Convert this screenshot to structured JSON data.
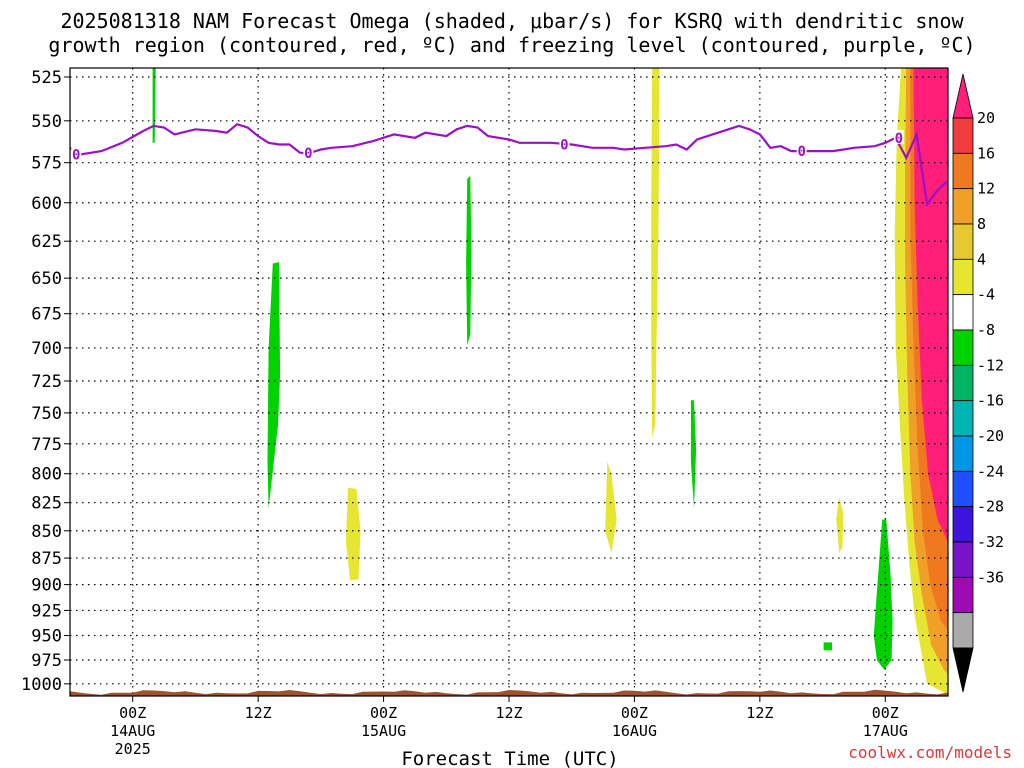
{
  "chart_data": {
    "type": "heatmap",
    "title": "2025081318 NAM Forecast Omega (shaded, μbar/s) for KSRQ with dendritic snow",
    "subtitle": "growth region (contoured, red, ºC) and freezing level (contoured, purple, ºC)",
    "xlabel": "Forecast Time (UTC)",
    "credit": "coolwx.com/models",
    "x_range_hours": [
      0,
      84
    ],
    "y_range_hpa": [
      1013,
      520
    ],
    "y_ticks": [
      "525",
      "550",
      "575",
      "600",
      "625",
      "650",
      "675",
      "700",
      "725",
      "750",
      "775",
      "800",
      "825",
      "850",
      "875",
      "900",
      "925",
      "950",
      "975",
      "1000"
    ],
    "x_ticks": [
      {
        "hour": 6,
        "label": "00Z",
        "date": "14AUG",
        "year": "2025"
      },
      {
        "hour": 18,
        "label": "12Z",
        "date": "",
        "year": ""
      },
      {
        "hour": 30,
        "label": "00Z",
        "date": "15AUG",
        "year": ""
      },
      {
        "hour": 42,
        "label": "12Z",
        "date": "",
        "year": ""
      },
      {
        "hour": 54,
        "label": "00Z",
        "date": "16AUG",
        "year": ""
      },
      {
        "hour": 66,
        "label": "12Z",
        "date": "",
        "year": ""
      },
      {
        "hour": 78,
        "label": "00Z",
        "date": "17AUG",
        "year": ""
      }
    ],
    "grid": true,
    "colorbar": {
      "labels": [
        "20",
        "16",
        "12",
        "8",
        "4",
        "-4",
        "-8",
        "-12",
        "-16",
        "-20",
        "-24",
        "-28",
        "-32",
        "-36"
      ],
      "colors": [
        "#ff1e78",
        "#f03c3c",
        "#f0781e",
        "#f0a028",
        "#e6c832",
        "#e6e632",
        "#ffffff",
        "#00d200",
        "#00b464",
        "#00b4b4",
        "#0096e6",
        "#1e50ff",
        "#3c14dc",
        "#7814c8",
        "#a00ab4",
        "#aaaaaa",
        "#000000"
      ]
    },
    "freezing_level": {
      "color": "#9b10c8",
      "label": "0",
      "points": [
        [
          0,
          566
        ],
        [
          1,
          570
        ],
        [
          3,
          568
        ],
        [
          5,
          563
        ],
        [
          7,
          556
        ],
        [
          8,
          553
        ],
        [
          9,
          554
        ],
        [
          10,
          558
        ],
        [
          12,
          555
        ],
        [
          14,
          556
        ],
        [
          15,
          557
        ],
        [
          16,
          552
        ],
        [
          17,
          554
        ],
        [
          18,
          559
        ],
        [
          19,
          563
        ],
        [
          20,
          564
        ],
        [
          21,
          564
        ],
        [
          22,
          569
        ],
        [
          23,
          569
        ],
        [
          24,
          567
        ],
        [
          25,
          566
        ],
        [
          27,
          565
        ],
        [
          29,
          562
        ],
        [
          31,
          558
        ],
        [
          33,
          560
        ],
        [
          34,
          557
        ],
        [
          36,
          559
        ],
        [
          37,
          555
        ],
        [
          38,
          553
        ],
        [
          39,
          554
        ],
        [
          40,
          559
        ],
        [
          42,
          561
        ],
        [
          43,
          563
        ],
        [
          46,
          563
        ],
        [
          48,
          564
        ],
        [
          50,
          566
        ],
        [
          52,
          566
        ],
        [
          53,
          567
        ],
        [
          55,
          566
        ],
        [
          57,
          565
        ],
        [
          58,
          564
        ],
        [
          59,
          567
        ],
        [
          60,
          561
        ],
        [
          62,
          557
        ],
        [
          64,
          553
        ],
        [
          65,
          555
        ],
        [
          66,
          558
        ],
        [
          67,
          566
        ],
        [
          68,
          565
        ],
        [
          69,
          568
        ],
        [
          71,
          568
        ],
        [
          73,
          568
        ],
        [
          74,
          567
        ],
        [
          75,
          566
        ],
        [
          77,
          565
        ],
        [
          78,
          563
        ],
        [
          79,
          560
        ],
        [
          80,
          572
        ],
        [
          81,
          558
        ],
        [
          82,
          601
        ],
        [
          83,
          592
        ],
        [
          84,
          586
        ]
      ]
    },
    "terrain_color": "#a0522d",
    "omega_regions": [
      {
        "value": -6,
        "color": "#00d200",
        "polygon": [
          [
            7.9,
            520
          ],
          [
            8.2,
            520
          ],
          [
            8.1,
            563
          ],
          [
            7.9,
            563
          ]
        ]
      },
      {
        "value": -6,
        "color": "#00d200",
        "polygon": [
          [
            19.4,
            640
          ],
          [
            20.0,
            639
          ],
          [
            20.1,
            720
          ],
          [
            19.9,
            760
          ],
          [
            19.5,
            790
          ],
          [
            19.0,
            830
          ],
          [
            18.9,
            790
          ],
          [
            19.0,
            700
          ]
        ]
      },
      {
        "value": -6,
        "color": "#00d200",
        "polygon": [
          [
            38.0,
            585
          ],
          [
            38.3,
            583
          ],
          [
            38.4,
            630
          ],
          [
            38.3,
            690
          ],
          [
            38.0,
            698
          ],
          [
            37.9,
            640
          ]
        ]
      },
      {
        "value": -6,
        "color": "#00d200",
        "polygon": [
          [
            59.4,
            740
          ],
          [
            59.7,
            740
          ],
          [
            59.9,
            780
          ],
          [
            59.7,
            830
          ],
          [
            59.4,
            790
          ]
        ]
      },
      {
        "value": -6,
        "color": "#00d200",
        "polygon": [
          [
            72.1,
            957
          ],
          [
            72.9,
            957
          ],
          [
            72.9,
            965
          ],
          [
            72.1,
            965
          ]
        ]
      },
      {
        "value": -6,
        "color": "#00d200",
        "polygon": [
          [
            77.7,
            840
          ],
          [
            78.1,
            840
          ],
          [
            78.5,
            890
          ],
          [
            78.7,
            935
          ],
          [
            78.6,
            975
          ],
          [
            77.9,
            985
          ],
          [
            77.2,
            975
          ],
          [
            76.9,
            950
          ],
          [
            77.1,
            920
          ],
          [
            77.4,
            880
          ]
        ]
      },
      {
        "value": 6,
        "color": "#e6e632",
        "polygon": [
          [
            26.6,
            812
          ],
          [
            27.4,
            813
          ],
          [
            27.8,
            850
          ],
          [
            27.6,
            895
          ],
          [
            26.8,
            896
          ],
          [
            26.4,
            860
          ]
        ]
      },
      {
        "value": 6,
        "color": "#e6e632",
        "polygon": [
          [
            51.4,
            790
          ],
          [
            51.8,
            800
          ],
          [
            52.3,
            840
          ],
          [
            51.8,
            870
          ],
          [
            51.2,
            850
          ]
        ]
      },
      {
        "value": 6,
        "color": "#e6e632",
        "polygon": [
          [
            55.7,
            520
          ],
          [
            56.4,
            520
          ],
          [
            56.3,
            620
          ],
          [
            56.1,
            700
          ],
          [
            56.0,
            760
          ],
          [
            55.7,
            770
          ],
          [
            55.6,
            690
          ],
          [
            55.6,
            600
          ]
        ]
      },
      {
        "value": 6,
        "color": "#e6e632",
        "polygon": [
          [
            73.6,
            820
          ],
          [
            74.0,
            835
          ],
          [
            73.9,
            865
          ],
          [
            73.6,
            870
          ],
          [
            73.3,
            840
          ]
        ]
      },
      {
        "value": 6,
        "color": "#e6e632",
        "polygon": [
          [
            79.5,
            520
          ],
          [
            84,
            520
          ],
          [
            84,
            1012
          ],
          [
            83.4,
            1008
          ],
          [
            82,
            1000
          ],
          [
            81.5,
            970
          ],
          [
            80.8,
            930
          ],
          [
            80.3,
            880
          ],
          [
            79.8,
            820
          ],
          [
            79.4,
            760
          ],
          [
            79.0,
            700
          ],
          [
            78.9,
            620
          ],
          [
            79.1,
            560
          ]
        ]
      },
      {
        "value": 10,
        "color": "#f0a028",
        "polygon": [
          [
            80.0,
            520
          ],
          [
            84,
            520
          ],
          [
            84,
            990
          ],
          [
            83.6,
            985
          ],
          [
            82.4,
            960
          ],
          [
            81.5,
            910
          ],
          [
            80.8,
            860
          ],
          [
            80.4,
            800
          ],
          [
            80.1,
            720
          ],
          [
            79.9,
            640
          ],
          [
            79.9,
            580
          ]
        ]
      },
      {
        "value": 14,
        "color": "#f0781e",
        "polygon": [
          [
            80.4,
            520
          ],
          [
            84,
            520
          ],
          [
            84,
            945
          ],
          [
            83.3,
            935
          ],
          [
            82.3,
            900
          ],
          [
            81.6,
            850
          ],
          [
            81.1,
            780
          ],
          [
            80.7,
            700
          ],
          [
            80.4,
            620
          ]
        ]
      },
      {
        "value": 22,
        "color": "#ff1e78",
        "polygon": [
          [
            80.7,
            520
          ],
          [
            84,
            520
          ],
          [
            84,
            860
          ],
          [
            83.0,
            840
          ],
          [
            82.1,
            800
          ],
          [
            81.5,
            740
          ],
          [
            81.1,
            670
          ],
          [
            80.8,
            600
          ]
        ]
      }
    ]
  }
}
